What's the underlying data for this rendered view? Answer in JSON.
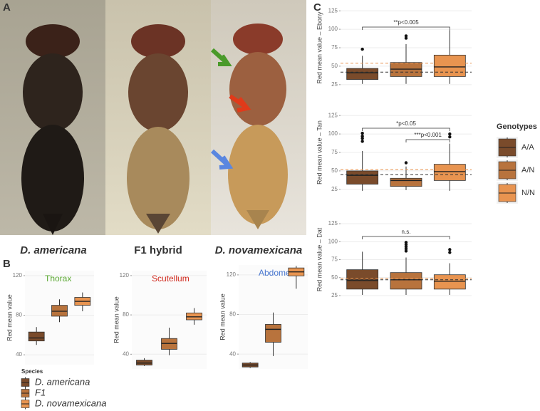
{
  "figure": {
    "panel_labels": [
      "A",
      "B",
      "C"
    ],
    "photo_captions": [
      "D. americana",
      "F1 hybrid",
      "D. novamexicana"
    ]
  },
  "legends": [
    {
      "title": "Species",
      "entries": [
        {
          "name": "D. americana",
          "color": "#7a4b2b"
        },
        {
          "name": "F1",
          "color": "#b8733d"
        },
        {
          "name": "D. novamexicana",
          "color": "#e89450"
        }
      ]
    },
    {
      "title": "Genotypes",
      "entries": [
        {
          "name": "A/A",
          "color": "#7a4b2b"
        },
        {
          "name": "A/N",
          "color": "#b8733d"
        },
        {
          "name": "N/N",
          "color": "#e89450"
        }
      ]
    }
  ],
  "chart_data": [
    {
      "type": "box",
      "title": "Thorax",
      "title_color": "#5aa832",
      "ylabel": "Red mean value",
      "ylim": [
        30,
        125
      ],
      "yticks": [
        40,
        80,
        120
      ],
      "grid": true,
      "boxes": [
        {
          "color": "#7a4b2b",
          "min": 50,
          "q1": 54,
          "median": 57,
          "q3": 63,
          "max": 68,
          "outliers": []
        },
        {
          "color": "#b8733d",
          "min": 73,
          "q1": 79,
          "median": 84,
          "q3": 90,
          "max": 96,
          "outliers": []
        },
        {
          "color": "#e89450",
          "min": 84,
          "q1": 90,
          "median": 94,
          "q3": 98,
          "max": 103,
          "outliers": []
        }
      ]
    },
    {
      "type": "box",
      "title": "Scutellum",
      "title_color": "#d0281c",
      "ylabel": "Red mean value",
      "ylim": [
        25,
        125
      ],
      "yticks": [
        40,
        80,
        120
      ],
      "grid": true,
      "boxes": [
        {
          "color": "#7a4b2b",
          "min": 28,
          "q1": 29,
          "median": 31,
          "q3": 34,
          "max": 36,
          "outliers": []
        },
        {
          "color": "#b8733d",
          "min": 39,
          "q1": 45,
          "median": 51,
          "q3": 56,
          "max": 67,
          "outliers": []
        },
        {
          "color": "#e89450",
          "min": 70,
          "q1": 75,
          "median": 78,
          "q3": 82,
          "max": 87,
          "outliers": []
        }
      ]
    },
    {
      "type": "box",
      "title": "Abdomen",
      "title_color": "#4a78d0",
      "ylabel": "Red mean value",
      "ylim": [
        25,
        130
      ],
      "yticks": [
        40,
        80,
        120
      ],
      "grid": true,
      "boxes": [
        {
          "color": "#7a4b2b",
          "min": 26,
          "q1": 27,
          "median": 29,
          "q3": 31,
          "max": 32,
          "outliers": []
        },
        {
          "color": "#b8733d",
          "min": 38,
          "q1": 52,
          "median": 65,
          "q3": 70,
          "max": 82,
          "outliers": []
        },
        {
          "color": "#e89450",
          "min": 106,
          "q1": 119,
          "median": 123,
          "q3": 127,
          "max": 129,
          "outliers": []
        }
      ]
    },
    {
      "type": "box",
      "ylabel": "Red mean value – Ebony",
      "ylim": [
        20,
        130
      ],
      "yticks": [
        25,
        50,
        75,
        100,
        125
      ],
      "grid": true,
      "reference_lines": [
        {
          "value": 54,
          "color": "#e89450"
        },
        {
          "value": 42,
          "color": "#333333"
        }
      ],
      "annotations": [
        {
          "text": "**p<0.005"
        }
      ],
      "boxes": [
        {
          "color": "#7a4b2b",
          "min": 26,
          "q1": 32,
          "median": 41,
          "q3": 47,
          "max": 64,
          "outliers": [
            73
          ]
        },
        {
          "color": "#b8733d",
          "min": 26,
          "q1": 36,
          "median": 46,
          "q3": 55,
          "max": 80,
          "outliers": [
            91,
            88
          ]
        },
        {
          "color": "#e89450",
          "min": 26,
          "q1": 36,
          "median": 49,
          "q3": 65,
          "max": 99,
          "outliers": []
        }
      ]
    },
    {
      "type": "box",
      "ylabel": "Red mean value – Tan",
      "ylim": [
        20,
        130
      ],
      "yticks": [
        25,
        50,
        75,
        100,
        125
      ],
      "grid": true,
      "reference_lines": [
        {
          "value": 52,
          "color": "#e89450"
        },
        {
          "value": 45,
          "color": "#333333"
        }
      ],
      "annotations": [
        {
          "text": "*p<0.05"
        },
        {
          "text": "***p<0.001"
        }
      ],
      "boxes": [
        {
          "color": "#7a4b2b",
          "min": 23,
          "q1": 32,
          "median": 44,
          "q3": 50,
          "max": 77,
          "outliers": [
            90,
            94,
            97,
            101
          ]
        },
        {
          "color": "#b8733d",
          "min": 24,
          "q1": 29,
          "median": 37,
          "q3": 40,
          "max": 56,
          "outliers": [
            61
          ]
        },
        {
          "color": "#e89450",
          "min": 23,
          "q1": 37,
          "median": 49,
          "q3": 59,
          "max": 87,
          "outliers": [
            96,
            100
          ]
        }
      ]
    },
    {
      "type": "box",
      "ylabel": "Red mean value – Dat",
      "ylim": [
        20,
        130
      ],
      "yticks": [
        25,
        50,
        75,
        100,
        125
      ],
      "grid": true,
      "reference_lines": [
        {
          "value": 49,
          "color": "#e89450"
        },
        {
          "value": 47,
          "color": "#333333"
        }
      ],
      "annotations": [
        {
          "text": "n.s."
        }
      ],
      "boxes": [
        {
          "color": "#7a4b2b",
          "min": 26,
          "q1": 34,
          "median": 46,
          "q3": 61,
          "max": 86,
          "outliers": []
        },
        {
          "color": "#b8733d",
          "min": 26,
          "q1": 34,
          "median": 47,
          "q3": 57,
          "max": 78,
          "outliers": [
            99,
            96,
            93,
            90,
            87
          ]
        },
        {
          "color": "#e89450",
          "min": 26,
          "q1": 34,
          "median": 45,
          "q3": 54,
          "max": 70,
          "outliers": [
            89,
            85
          ]
        }
      ]
    }
  ]
}
